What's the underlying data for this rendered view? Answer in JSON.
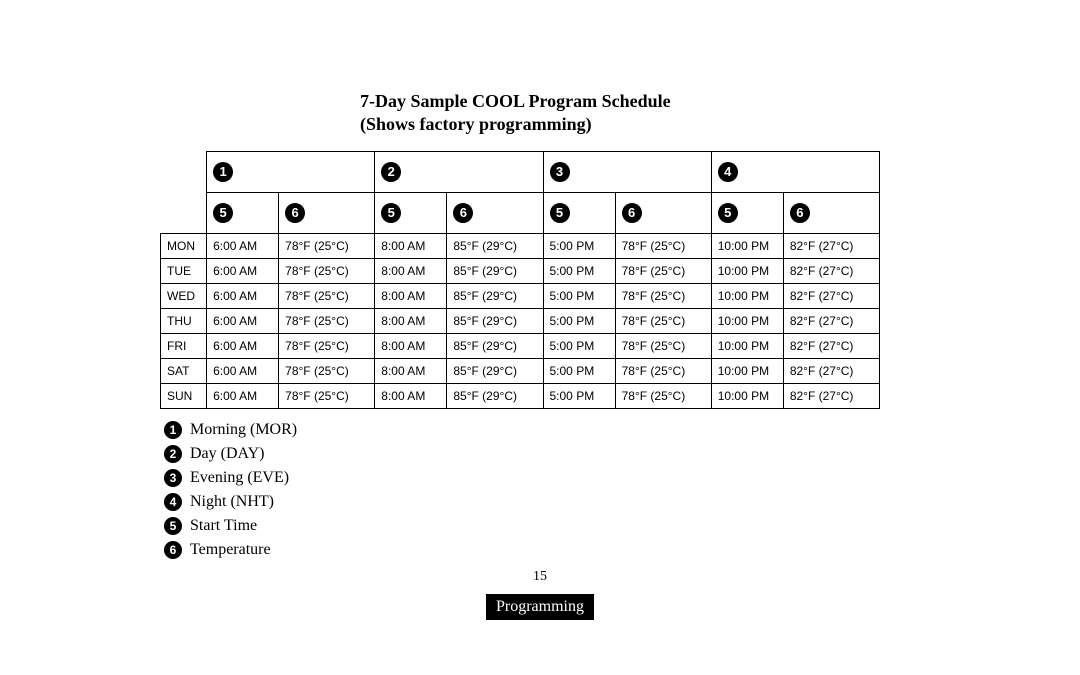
{
  "title_line1": "7-Day Sample COOL Program Schedule",
  "title_line2": "(Shows factory programming)",
  "header_periods": [
    "1",
    "2",
    "3",
    "4"
  ],
  "header_sub": [
    "5",
    "6",
    "5",
    "6",
    "5",
    "6",
    "5",
    "6"
  ],
  "days": [
    "MON",
    "TUE",
    "WED",
    "THU",
    "FRI",
    "SAT",
    "SUN"
  ],
  "row_values": [
    "6:00 AM",
    "78°F (25°C)",
    "8:00 AM",
    "85°F (29°C)",
    "5:00 PM",
    "78°F (25°C)",
    "10:00 PM",
    "82°F (27°C)"
  ],
  "legend": [
    {
      "num": "1",
      "label": "Morning (MOR)"
    },
    {
      "num": "2",
      "label": "Day (DAY)"
    },
    {
      "num": "3",
      "label": "Evening (EVE)"
    },
    {
      "num": "4",
      "label": "Night (NHT)"
    },
    {
      "num": "5",
      "label": "Start Time"
    },
    {
      "num": "6",
      "label": "Temperature"
    }
  ],
  "page_number": "15",
  "footer_tab": "Programming",
  "colors": {
    "circle_bg": "#000000",
    "circle_fg": "#ffffff",
    "border": "#000000",
    "background": "#ffffff"
  }
}
